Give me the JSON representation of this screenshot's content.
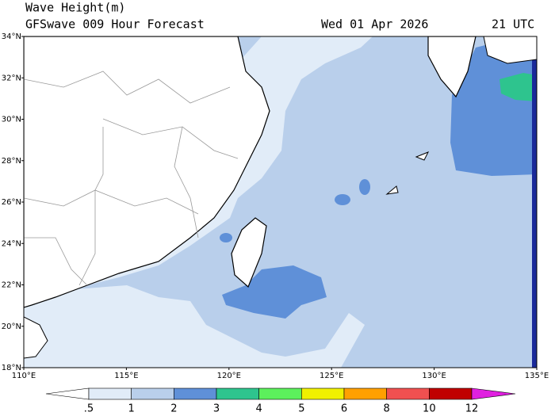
{
  "header": {
    "title": "Wave Height(m)",
    "subtitle": "GFSwave 009 Hour Forecast",
    "date": "Wed 01 Apr 2026",
    "time": "21 UTC"
  },
  "map": {
    "lat_labels": [
      "34°N",
      "32°N",
      "30°N",
      "28°N",
      "26°N",
      "24°N",
      "22°N",
      "20°N",
      "18°N"
    ],
    "lon_labels": [
      "110°E",
      "115°E",
      "120°E",
      "125°E",
      "130°E",
      "135°E"
    ]
  },
  "colorbar": {
    "labels": [
      ".5",
      "1",
      "2",
      "3",
      "4",
      "5",
      "6",
      "8",
      "10",
      "12"
    ],
    "colors": [
      "#ffffff",
      "#e1ecf8",
      "#b9cfeb",
      "#5f90d8",
      "#2ec48e",
      "#5cf05c",
      "#f0f000",
      "#ffa000",
      "#f05050",
      "#c00000",
      "#e020e0"
    ]
  }
}
